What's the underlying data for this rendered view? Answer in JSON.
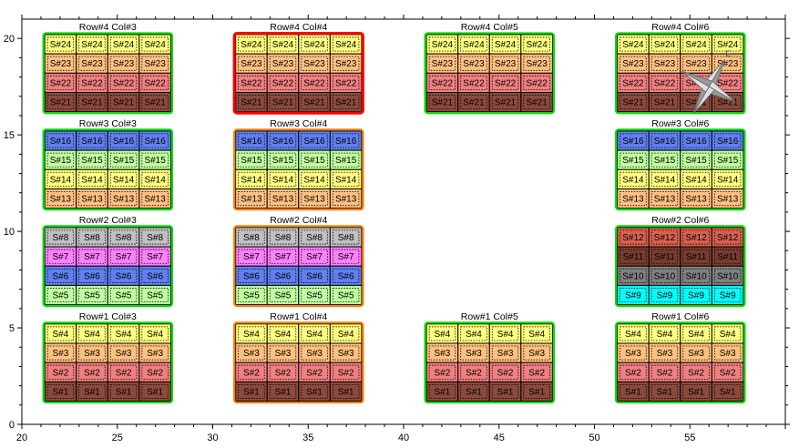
{
  "chart_data": {
    "type": "heatmap",
    "xlim": [
      20,
      60
    ],
    "ylim": [
      0,
      21
    ],
    "x_ticks": [
      "20",
      "25",
      "30",
      "35",
      "40",
      "45",
      "50",
      "55"
    ],
    "y_ticks": [
      "0",
      "5",
      "10",
      "15",
      "20"
    ],
    "grid": false,
    "colors": {
      "yellow": "#ffff80",
      "orange": "#ffc080",
      "salmon": "#f08080",
      "brown": "#8b4a3c",
      "blue": "#6080f0",
      "lightgreen": "#c0ffa0",
      "gray": "#c0c0c0",
      "magenta": "#ff80ff",
      "darkred": "#d86050",
      "darkbrown": "#7a3c30",
      "darkgray": "#808080",
      "cyan": "#00ffff",
      "frame_green": "#00dd00",
      "frame_orange": "#ff8000",
      "frame_red": "#ff0000"
    },
    "groups": [
      {
        "title": "Row#4 Col#3",
        "frame": "frame_green",
        "x_range": [
          21.2,
          27.8
        ],
        "y_range": [
          16.2,
          20.2
        ],
        "rows": [
          {
            "label": "S#24",
            "color": "yellow"
          },
          {
            "label": "S#23",
            "color": "orange"
          },
          {
            "label": "S#22",
            "color": "salmon"
          },
          {
            "label": "S#21",
            "color": "brown"
          }
        ]
      },
      {
        "title": "Row#4 Col#4",
        "frame": "frame_red",
        "x_range": [
          31.2,
          37.8
        ],
        "y_range": [
          16.2,
          20.2
        ],
        "rows": [
          {
            "label": "S#24",
            "color": "yellow"
          },
          {
            "label": "S#23",
            "color": "orange"
          },
          {
            "label": "S#22",
            "color": "salmon"
          },
          {
            "label": "S#21",
            "color": "brown"
          }
        ]
      },
      {
        "title": "Row#4 Col#5",
        "frame": "frame_green",
        "x_range": [
          41.2,
          47.8
        ],
        "y_range": [
          16.2,
          20.2
        ],
        "rows": [
          {
            "label": "S#24",
            "color": "yellow"
          },
          {
            "label": "S#23",
            "color": "orange"
          },
          {
            "label": "S#22",
            "color": "salmon"
          },
          {
            "label": "S#21",
            "color": "brown"
          }
        ]
      },
      {
        "title": "Row#4 Col#6",
        "frame": "frame_green",
        "x_range": [
          51.2,
          57.8
        ],
        "y_range": [
          16.2,
          20.2
        ],
        "rows": [
          {
            "label": "S#24",
            "color": "yellow"
          },
          {
            "label": "S#23",
            "color": "orange"
          },
          {
            "label": "S#22",
            "color": "salmon"
          },
          {
            "label": "S#21",
            "color": "brown"
          }
        ]
      },
      {
        "title": "Row#3 Col#3",
        "frame": "frame_green",
        "x_range": [
          21.2,
          27.8
        ],
        "y_range": [
          11.2,
          15.2
        ],
        "rows": [
          {
            "label": "S#16",
            "color": "blue"
          },
          {
            "label": "S#15",
            "color": "lightgreen"
          },
          {
            "label": "S#14",
            "color": "yellow"
          },
          {
            "label": "S#13",
            "color": "orange"
          }
        ]
      },
      {
        "title": "Row#3 Col#4",
        "frame": "frame_orange",
        "x_range": [
          31.2,
          37.8
        ],
        "y_range": [
          11.2,
          15.2
        ],
        "rows": [
          {
            "label": "S#16",
            "color": "blue"
          },
          {
            "label": "S#15",
            "color": "lightgreen"
          },
          {
            "label": "S#14",
            "color": "yellow"
          },
          {
            "label": "S#13",
            "color": "orange"
          }
        ]
      },
      {
        "title": "Row#3 Col#6",
        "frame": "frame_green",
        "x_range": [
          51.2,
          57.8
        ],
        "y_range": [
          11.2,
          15.2
        ],
        "rows": [
          {
            "label": "S#16",
            "color": "blue"
          },
          {
            "label": "S#15",
            "color": "lightgreen"
          },
          {
            "label": "S#14",
            "color": "yellow"
          },
          {
            "label": "S#13",
            "color": "orange"
          }
        ]
      },
      {
        "title": "Row#2 Col#3",
        "frame": "frame_green",
        "x_range": [
          21.2,
          27.8
        ],
        "y_range": [
          6.2,
          10.2
        ],
        "rows": [
          {
            "label": "S#8",
            "color": "gray"
          },
          {
            "label": "S#7",
            "color": "magenta"
          },
          {
            "label": "S#6",
            "color": "blue"
          },
          {
            "label": "S#5",
            "color": "lightgreen"
          }
        ]
      },
      {
        "title": "Row#2 Col#4",
        "frame": "frame_orange",
        "x_range": [
          31.2,
          37.8
        ],
        "y_range": [
          6.2,
          10.2
        ],
        "rows": [
          {
            "label": "S#8",
            "color": "gray"
          },
          {
            "label": "S#7",
            "color": "magenta"
          },
          {
            "label": "S#6",
            "color": "blue"
          },
          {
            "label": "S#5",
            "color": "lightgreen"
          }
        ]
      },
      {
        "title": "Row#2 Col#6",
        "frame": "frame_green",
        "x_range": [
          51.2,
          57.8
        ],
        "y_range": [
          6.2,
          10.2
        ],
        "rows": [
          {
            "label": "S#12",
            "color": "darkred"
          },
          {
            "label": "S#11",
            "color": "darkbrown"
          },
          {
            "label": "S#10",
            "color": "darkgray"
          },
          {
            "label": "S#9",
            "color": "cyan"
          }
        ]
      },
      {
        "title": "Row#1 Col#3",
        "frame": "frame_green",
        "x_range": [
          21.2,
          27.8
        ],
        "y_range": [
          1.2,
          5.2
        ],
        "rows": [
          {
            "label": "S#4",
            "color": "yellow"
          },
          {
            "label": "S#3",
            "color": "orange"
          },
          {
            "label": "S#2",
            "color": "salmon"
          },
          {
            "label": "S#1",
            "color": "brown"
          }
        ]
      },
      {
        "title": "Row#1 Col#4",
        "frame": "frame_orange",
        "x_range": [
          31.2,
          37.8
        ],
        "y_range": [
          1.2,
          5.2
        ],
        "rows": [
          {
            "label": "S#4",
            "color": "yellow"
          },
          {
            "label": "S#3",
            "color": "orange"
          },
          {
            "label": "S#2",
            "color": "salmon"
          },
          {
            "label": "S#1",
            "color": "brown"
          }
        ]
      },
      {
        "title": "Row#1 Col#5",
        "frame": "frame_green",
        "x_range": [
          41.2,
          47.8
        ],
        "y_range": [
          1.2,
          5.2
        ],
        "rows": [
          {
            "label": "S#4",
            "color": "yellow"
          },
          {
            "label": "S#3",
            "color": "orange"
          },
          {
            "label": "S#2",
            "color": "salmon"
          },
          {
            "label": "S#1",
            "color": "brown"
          }
        ]
      },
      {
        "title": "Row#1 Col#6",
        "frame": "frame_green",
        "x_range": [
          51.2,
          57.8
        ],
        "y_range": [
          1.2,
          5.2
        ],
        "rows": [
          {
            "label": "S#4",
            "color": "yellow"
          },
          {
            "label": "S#3",
            "color": "orange"
          },
          {
            "label": "S#2",
            "color": "salmon"
          },
          {
            "label": "S#1",
            "color": "brown"
          }
        ]
      }
    ],
    "compass": {
      "x": 56,
      "y": 17.5,
      "letters": [
        "E",
        "S"
      ]
    }
  }
}
